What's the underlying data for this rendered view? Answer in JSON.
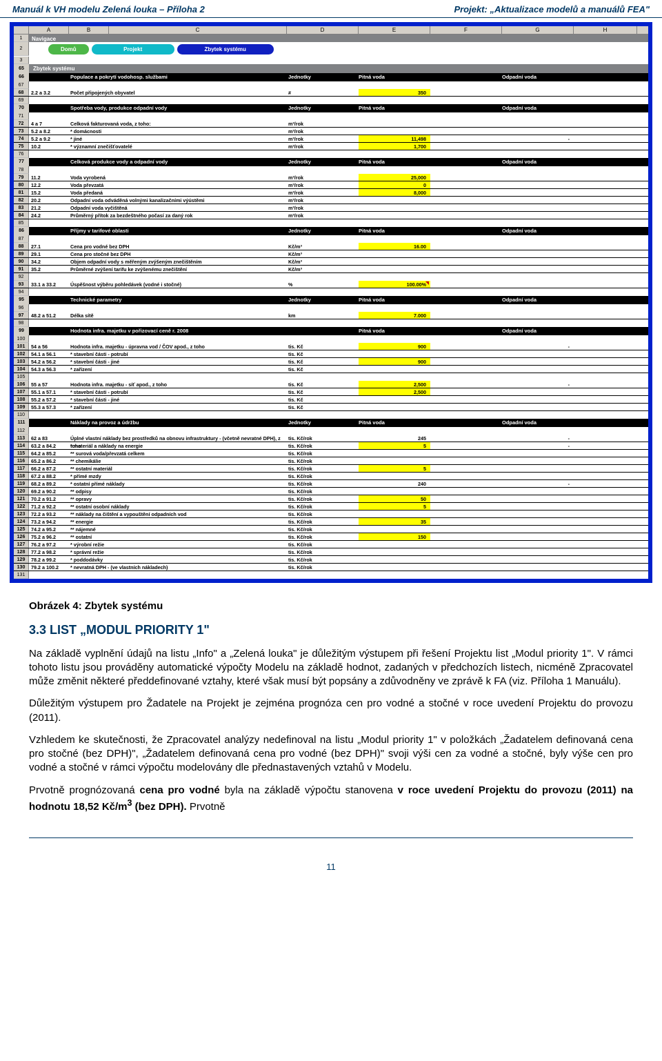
{
  "header": {
    "left": "Manuál k VH modelu Zelená louka – Příloha 2",
    "right": "Projekt: „Aktualizace modelů a manuálů FEA\""
  },
  "columns": [
    "A",
    "B",
    "C",
    "D",
    "E",
    "F",
    "G",
    "H"
  ],
  "nav": {
    "title": "Navigace",
    "tabs": [
      "Domů",
      "Projekt",
      "Zbytek systému"
    ]
  },
  "sectionTitle": "Zbytek systému",
  "headers": {
    "jednotky": "Jednotky",
    "pitna": "Pitná voda",
    "odpadni": "Odpadní voda"
  },
  "sections": [
    {
      "num": 66,
      "title": "Populace a pokrytí vodohosp. službami",
      "rows": [
        {
          "num": 68,
          "b": "2.2 a 3.2",
          "c": "Počet připojených obyvatel",
          "unit": "#",
          "e": "350",
          "eHl": true
        }
      ]
    },
    {
      "num": 70,
      "title": "Spotřeba vody, produkce odpadní vody",
      "rows": [
        {
          "num": 72,
          "b": "4 a 7",
          "c": "Celková fakturovaná voda, z toho:",
          "unit": "m³/rok"
        },
        {
          "num": 73,
          "b": "5.2 a 8.2",
          "c": "* domácnosti",
          "unit": "m³/rok"
        },
        {
          "num": 74,
          "b": "5.2 a 9.2",
          "c": "* jiné",
          "unit": "m³/rok",
          "e": "11,498",
          "eHl": true,
          "g": "-"
        },
        {
          "num": 75,
          "b": "10.2",
          "c": "* významní znečišťovatelé",
          "unit": "m³/rok",
          "e": "1,700",
          "eHl": true
        }
      ]
    },
    {
      "num": 77,
      "title": "Celková produkce vody a odpadní vody",
      "rows": [
        {
          "num": 79,
          "b": "11.2",
          "c": "Voda vyrobená",
          "unit": "m³/rok",
          "e": "25,000",
          "eHl": true
        },
        {
          "num": 80,
          "b": "12.2",
          "c": "Voda převzatá",
          "unit": "m³/rok",
          "e": "0",
          "eHl": true
        },
        {
          "num": 81,
          "b": "15.2",
          "c": "Voda předaná",
          "unit": "m³/rok",
          "e": "8,000",
          "eHl": true
        },
        {
          "num": 82,
          "b": "20.2",
          "c": "Odpadní voda odváděná volnými kanalizačními výústěmi",
          "unit": "m³/rok"
        },
        {
          "num": 83,
          "b": "21.2",
          "c": "Odpadní voda vyčištěná",
          "unit": "m³/rok"
        },
        {
          "num": 84,
          "b": "24.2",
          "c": "Průměrný přítok za bezdeštného počasí za daný rok",
          "unit": "m³/rok"
        }
      ]
    },
    {
      "num": 86,
      "title": "Příjmy v tarifové oblasti",
      "rows": [
        {
          "num": 88,
          "b": "27.1",
          "c": "Cena pro vodné bez DPH",
          "unit": "Kč/m³",
          "e": "16.00",
          "eHl": true
        },
        {
          "num": 89,
          "b": "29.1",
          "c": "Cena pro stočné bez DPH",
          "unit": "Kč/m³"
        },
        {
          "num": 90,
          "b": "34.2",
          "c": "Objem odpadní vody s měřeným zvýšeným znečištěním",
          "unit": "Kč/m³"
        },
        {
          "num": 91,
          "b": "35.2",
          "c": "Průměrné zvýšení tarifu ke zvýšenému znečištění",
          "unit": "Kč/m³"
        }
      ],
      "extra": [
        {
          "num": 93,
          "b": "33.1 a 33.2",
          "c": "Úspěšnost výběru pohledávek (vodné i stočné)",
          "unit": "%",
          "e": "100.00%",
          "eHl": true,
          "flag": true
        }
      ]
    },
    {
      "num": 95,
      "title": "Technické parametry",
      "rows": [
        {
          "num": 97,
          "b": "48.2 a 51.2",
          "c": "Délka sítě",
          "unit": "km",
          "e": "7.000",
          "eHl": true
        }
      ]
    },
    {
      "num": 99,
      "title": "Hodnota infra. majetku v pořizovací ceně r. 2008",
      "noUnit": true,
      "rows": [
        {
          "num": 101,
          "b": "54 a 56",
          "c": "Hodnota infra. majetku - úpravna vod / ČOV apod., z toho",
          "unit": "tis. Kč",
          "e": "900",
          "eHl": true,
          "g": "-"
        },
        {
          "num": 102,
          "b": "54.1 a 56.1",
          "c": "* stavební části - potrubí",
          "unit": "tis. Kč"
        },
        {
          "num": 103,
          "b": "54.2 a 56.2",
          "c": "* stavební části - jiné",
          "unit": "tis. Kč",
          "e": "900",
          "eHl": true
        },
        {
          "num": 104,
          "b": "54.3 a 56.3",
          "c": "* zařízení",
          "unit": "tis. Kč"
        }
      ],
      "extra2": [
        {
          "num": 106,
          "b": "55 a 57",
          "c": "Hodnota infra. majetku - síť apod., z toho",
          "unit": "tis. Kč",
          "e": "2,500",
          "eHl": true,
          "g": "-"
        },
        {
          "num": 107,
          "b": "55.1 a 57.1",
          "c": "* stavební části - potrubí",
          "unit": "tis. Kč",
          "e": "2,500",
          "eHl": true
        },
        {
          "num": 108,
          "b": "55.2 a 57.2",
          "c": "* stavební části - jiné",
          "unit": "tis. Kč"
        },
        {
          "num": 109,
          "b": "55.3 a 57.3",
          "c": "* zařízení",
          "unit": "tis. Kč"
        }
      ]
    },
    {
      "num": 111,
      "title": "Náklady na provoz a údržbu",
      "rows": [
        {
          "num": 113,
          "b": "62 a 83",
          "c": "Úplné vlastní náklady bez prostředků na obnovu infrastruktury - (včetně nevratné DPH), z toho",
          "unit": "tis. Kč/rok",
          "e": "245",
          "g": "-"
        },
        {
          "num": 114,
          "b": "63.2 a 84.2",
          "c": "* materiál a náklady na energie",
          "unit": "tis. Kč/rok",
          "e": "5",
          "eHl": true,
          "g": "-"
        },
        {
          "num": 115,
          "b": "64.2 a 85.2",
          "c": "** surová voda/převzatá celkem",
          "unit": "tis. Kč/rok"
        },
        {
          "num": 116,
          "b": "65.2 a 86.2",
          "c": "** chemikálie",
          "unit": "tis. Kč/rok"
        },
        {
          "num": 117,
          "b": "66.2 a 87.2",
          "c": "** ostatní materiál",
          "unit": "tis. Kč/rok",
          "e": "5",
          "eHl": true
        },
        {
          "num": 118,
          "b": "67.2 a 88.2",
          "c": "* přímé mzdy",
          "unit": "tis. Kč/rok"
        },
        {
          "num": 119,
          "b": "68.2 a 89.2",
          "c": "* ostatní přímé náklady",
          "unit": "tis. Kč/rok",
          "e": "240",
          "g": "-"
        },
        {
          "num": 120,
          "b": "69.2 a 90.2",
          "c": "** odpisy",
          "unit": "tis. Kč/rok"
        },
        {
          "num": 121,
          "b": "70.2 a 91.2",
          "c": "** opravy",
          "unit": "tis. Kč/rok",
          "e": "50",
          "eHl": true
        },
        {
          "num": 122,
          "b": "71.2 a 92.2",
          "c": "** ostatní osobní náklady",
          "unit": "tis. Kč/rok",
          "e": "5",
          "eHl": true
        },
        {
          "num": 123,
          "b": "72.2 a 93.2",
          "c": "** náklady na čištění a vypouštění odpadních vod",
          "unit": "tis. Kč/rok"
        },
        {
          "num": 124,
          "b": "73.2 a 94.2",
          "c": "** energie",
          "unit": "tis. Kč/rok",
          "e": "35",
          "eHl": true
        },
        {
          "num": 125,
          "b": "74.2 a 95.2",
          "c": "** nájemné",
          "unit": "tis. Kč/rok"
        },
        {
          "num": 126,
          "b": "75.2 a 96.2",
          "c": "** ostatní",
          "unit": "tis. Kč/rok",
          "e": "150",
          "eHl": true
        },
        {
          "num": 127,
          "b": "76.2 a 97.2",
          "c": "* výrobní režie",
          "unit": "tis. Kč/rok"
        },
        {
          "num": 128,
          "b": "77.2 a 98.2",
          "c": "* správní režie",
          "unit": "tis. Kč/rok"
        },
        {
          "num": 129,
          "b": "78.2 a 99.2",
          "c": "* poddodávky",
          "unit": "tis. Kč/rok"
        },
        {
          "num": 130,
          "b": "79.2 a 100.2",
          "c": "* nevratná DPH - (ve vlastních nákladech)",
          "unit": "tis. Kč/rok"
        }
      ]
    }
  ],
  "blankRows": [
    1,
    2,
    3,
    65,
    67,
    69,
    71,
    76,
    78,
    85,
    87,
    92,
    94,
    96,
    98,
    100,
    105,
    110,
    112,
    131
  ],
  "caption": "Obrázek 4: Zbytek systému",
  "section": {
    "heading": "3.3  LIST „MODUL PRIORITY 1\"",
    "p1": "Na základě vyplnění údajů na listu „Info\" a „Zelená louka\" je důležitým výstupem při řešení Projektu list „Modul priority 1\". V rámci tohoto listu jsou prováděny automatické výpočty Modelu na základě hodnot, zadaných v předchozích listech, nicméně Zpracovatel může změnit některé předdefinované vztahy, které však musí být popsány a zdůvodněny ve zprávě k FA (viz. Příloha 1 Manuálu).",
    "p2": "Důležitým výstupem pro Žadatele na Projekt je zejména prognóza cen pro vodné a stočné v roce uvedení Projektu do provozu (2011).",
    "p3": "Vzhledem ke skutečnosti, že Zpracovatel analýzy nedefinoval na listu „Modul priority 1\" v položkách „Žadatelem definovaná cena pro stočné (bez DPH)\", „Žadatelem definovaná cena pro vodné (bez DPH)\" svoji výši cen za vodné a stočné, byly výše cen pro vodné a stočné v rámci výpočtu modelovány dle přednastavených vztahů v Modelu.",
    "p4a": "Prvotně prognózovaná ",
    "p4b": "cena pro vodné",
    "p4c": " byla na základě výpočtu stanovena ",
    "p4d": "v roce uvedení Projektu do provozu (2011) na hodnotu 18,52 Kč/m",
    "p4sup": "3",
    "p4e": " (bez DPH).",
    "p4f": " Prvotně"
  },
  "pageNumber": "11"
}
